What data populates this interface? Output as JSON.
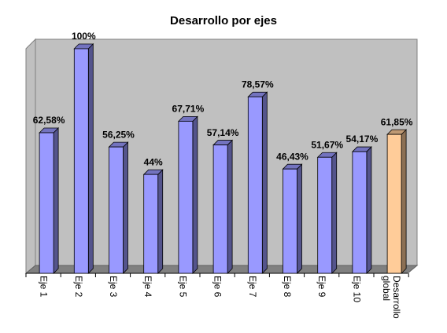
{
  "chart_data": {
    "type": "bar3d",
    "title": "Desarrollo por ejes",
    "categories": [
      "Eje 1",
      "Eje 2",
      "Eje 3",
      "Eje 4",
      "Eje 5",
      "Eje 6",
      "Eje 7",
      "Eje 8",
      "Eje 9",
      "Eje 10",
      "Desarrollo\nglobal"
    ],
    "values": [
      62.58,
      100,
      56.25,
      44,
      67.71,
      57.14,
      78.57,
      46.43,
      51.67,
      54.17,
      61.85
    ],
    "value_labels": [
      "62,58%",
      "100%",
      "56,25%",
      "44%",
      "67,71%",
      "57,14%",
      "78,57%",
      "46,43%",
      "51,67%",
      "54,17%",
      "61,85%"
    ],
    "colors": [
      "#9999ff",
      "#9999ff",
      "#9999ff",
      "#9999ff",
      "#9999ff",
      "#9999ff",
      "#9999ff",
      "#9999ff",
      "#9999ff",
      "#9999ff",
      "#ffcc99"
    ],
    "ylim": [
      0,
      100
    ]
  }
}
